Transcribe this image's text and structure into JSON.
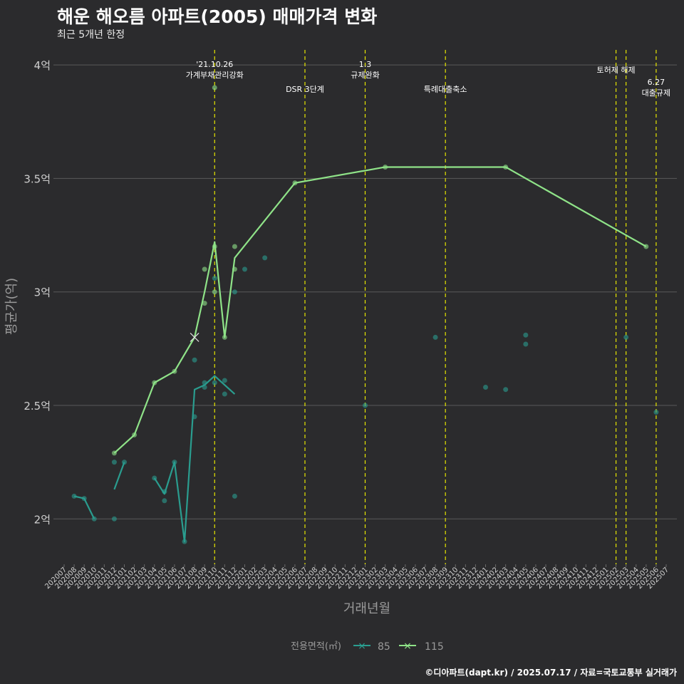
{
  "header": {
    "title": "해운 해오름 아파트(2005) 매매가격 변화",
    "subtitle": "최근 5개년 한정"
  },
  "footer": {
    "credit": "©디아파트(dapt.kr) / 2025.07.17 / 자료=국토교통부 실거래가"
  },
  "colors": {
    "s85": "#2a9d8f",
    "s115": "#8fe388",
    "vline": "#e6e600",
    "grid": "#5a5a5a"
  },
  "chart_data": {
    "type": "line",
    "title": "해운 해오름 아파트(2005) 매매가격 변화",
    "xlabel": "거래년월",
    "ylabel": "평균가(억)",
    "ylim": [
      1.8,
      4.06
    ],
    "yticks": [
      {
        "value": 2,
        "label": "2억"
      },
      {
        "value": 2.5,
        "label": "2.5억"
      },
      {
        "value": 3,
        "label": "3억"
      },
      {
        "value": 3.5,
        "label": "3.5억"
      },
      {
        "value": 4,
        "label": "4억"
      }
    ],
    "categories": [
      "202007",
      "202008",
      "202009",
      "202010",
      "202011",
      "202012",
      "202101",
      "202102",
      "202103",
      "202104",
      "202105",
      "202106",
      "202107",
      "202108",
      "202109",
      "202110",
      "202111",
      "202112",
      "202201",
      "202202",
      "202203",
      "202204",
      "202205",
      "202206",
      "202207",
      "202208",
      "202209",
      "202210",
      "202211",
      "202212",
      "202301",
      "202302",
      "202303",
      "202304",
      "202305",
      "202306",
      "202307",
      "202308",
      "202309",
      "202310",
      "202311",
      "202312",
      "202401",
      "202402",
      "202403",
      "202404",
      "202405",
      "202406",
      "202407",
      "202408",
      "202409",
      "202410",
      "202411",
      "202412",
      "202501",
      "202502",
      "202503",
      "202504",
      "202505",
      "202506",
      "202507"
    ],
    "legend": {
      "title": "전용면적(㎡)",
      "items": [
        "85",
        "115"
      ],
      "position": "bottom"
    },
    "series": [
      {
        "name": "85",
        "color": "#2a9d8f",
        "line": [
          {
            "x": "202008",
            "y": 2.1
          },
          {
            "x": "202009",
            "y": 2.09
          },
          {
            "x": "202010",
            "y": 2.0
          },
          {
            "x": "202012",
            "y": 2.13
          },
          {
            "x": "202101",
            "y": 2.25
          },
          {
            "x": "202104",
            "y": 2.18
          },
          {
            "x": "202105",
            "y": 2.11
          },
          {
            "x": "202106",
            "y": 2.25
          },
          {
            "x": "202107",
            "y": 1.9
          },
          {
            "x": "202108",
            "y": 2.57
          },
          {
            "x": "202109",
            "y": 2.59
          },
          {
            "x": "202110",
            "y": 2.63
          },
          {
            "x": "202111",
            "y": 2.59
          },
          {
            "x": "202112",
            "y": 2.55
          }
        ],
        "points": [
          {
            "x": "202008",
            "y": 2.1
          },
          {
            "x": "202009",
            "y": 2.09
          },
          {
            "x": "202010",
            "y": 2.0
          },
          {
            "x": "202012",
            "y": 2.25
          },
          {
            "x": "202012",
            "y": 2.0
          },
          {
            "x": "202101",
            "y": 2.25
          },
          {
            "x": "202104",
            "y": 2.18
          },
          {
            "x": "202105",
            "y": 2.12
          },
          {
            "x": "202105",
            "y": 2.08
          },
          {
            "x": "202106",
            "y": 2.25
          },
          {
            "x": "202107",
            "y": 1.9
          },
          {
            "x": "202108",
            "y": 2.45
          },
          {
            "x": "202108",
            "y": 2.7
          },
          {
            "x": "202109",
            "y": 2.6
          },
          {
            "x": "202109",
            "y": 2.58
          },
          {
            "x": "202110",
            "y": 2.6
          },
          {
            "x": "202110",
            "y": 3.06
          },
          {
            "x": "202111",
            "y": 2.61
          },
          {
            "x": "202111",
            "y": 2.55
          },
          {
            "x": "202112",
            "y": 3.0
          },
          {
            "x": "202112",
            "y": 2.1
          },
          {
            "x": "202201",
            "y": 3.1
          },
          {
            "x": "202203",
            "y": 3.15
          },
          {
            "x": "202301",
            "y": 2.5
          },
          {
            "x": "202308",
            "y": 2.8
          },
          {
            "x": "202401",
            "y": 2.58
          },
          {
            "x": "202403",
            "y": 2.57
          },
          {
            "x": "202405",
            "y": 2.81
          },
          {
            "x": "202405",
            "y": 2.77
          },
          {
            "x": "202503",
            "y": 2.8
          },
          {
            "x": "202506",
            "y": 2.47
          }
        ]
      },
      {
        "name": "115",
        "color": "#8fe388",
        "line": [
          {
            "x": "202012",
            "y": 2.29
          },
          {
            "x": "202102",
            "y": 2.37
          },
          {
            "x": "202104",
            "y": 2.6
          },
          {
            "x": "202106",
            "y": 2.65
          },
          {
            "x": "202108",
            "y": 2.8
          },
          {
            "x": "202109",
            "y": 3.0
          },
          {
            "x": "202110",
            "y": 3.22
          },
          {
            "x": "202111",
            "y": 2.8
          },
          {
            "x": "202112",
            "y": 3.15
          },
          {
            "x": "202206",
            "y": 3.48
          },
          {
            "x": "202303",
            "y": 3.55
          },
          {
            "x": "202403",
            "y": 3.55
          },
          {
            "x": "202505",
            "y": 3.2
          }
        ],
        "points": [
          {
            "x": "202012",
            "y": 2.29
          },
          {
            "x": "202102",
            "y": 2.37
          },
          {
            "x": "202104",
            "y": 2.6
          },
          {
            "x": "202106",
            "y": 2.65
          },
          {
            "x": "202109",
            "y": 3.1
          },
          {
            "x": "202109",
            "y": 2.95
          },
          {
            "x": "202110",
            "y": 3.9
          },
          {
            "x": "202110",
            "y": 3.2
          },
          {
            "x": "202110",
            "y": 3.0
          },
          {
            "x": "202111",
            "y": 2.8
          },
          {
            "x": "202112",
            "y": 3.2
          },
          {
            "x": "202112",
            "y": 3.1
          },
          {
            "x": "202206",
            "y": 3.48
          },
          {
            "x": "202303",
            "y": 3.55
          },
          {
            "x": "202403",
            "y": 3.55
          },
          {
            "x": "202505",
            "y": 3.2
          }
        ],
        "markers": [
          {
            "x": "202108",
            "y": 2.8,
            "symbol": "x"
          }
        ]
      }
    ],
    "annotations": [
      {
        "x": "202110",
        "lines": [
          "'21.10.26",
          "가계부채관리강화"
        ],
        "tier": "upper"
      },
      {
        "x": "202207",
        "lines": [
          "DSR 3단계"
        ],
        "tier": "lower"
      },
      {
        "x": "202301",
        "lines": [
          "1.3",
          "규제완화"
        ],
        "tier": "upper"
      },
      {
        "x": "202309",
        "lines": [
          "특례대출축소"
        ],
        "tier": "lower"
      },
      {
        "x": "202502",
        "lines": [
          "토허제 해제"
        ],
        "tier": "mid",
        "anchor": "end"
      },
      {
        "x": "202503",
        "lines": [],
        "tier": "mid"
      },
      {
        "x": "202506",
        "lines": [
          "6.27",
          "대출규제"
        ],
        "tier": "low2"
      }
    ]
  }
}
